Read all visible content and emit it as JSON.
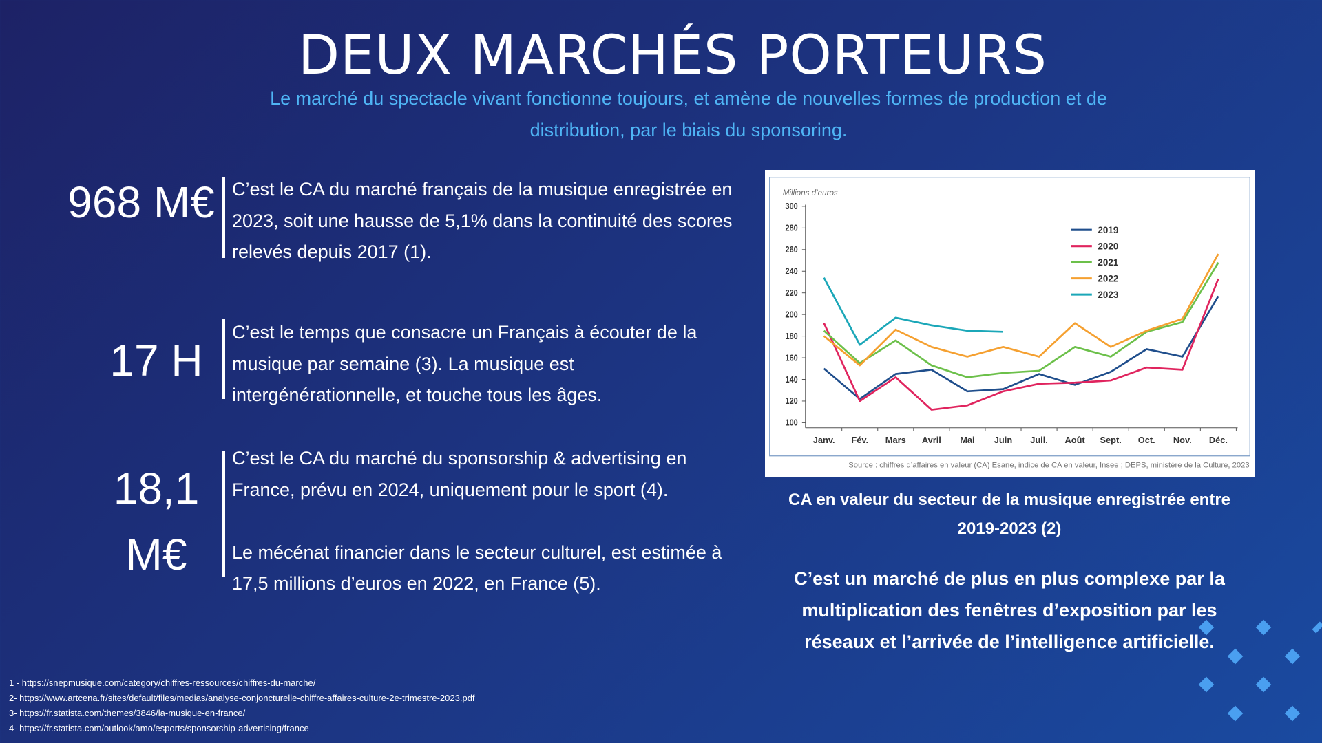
{
  "title": "DEUX MARCHÉS PORTEURS",
  "subtitle": "Le marché du spectacle vivant fonctionne toujours, et amène de nouvelles formes de production et de distribution, par le biais du sponsoring.",
  "stats": [
    {
      "figure": "968 M€",
      "text": [
        "C’est le CA du marché français de la musique enregistrée en 2023, soit une hausse de 5,1% dans la continuité des scores relevés depuis 2017 (1)."
      ]
    },
    {
      "figure": "17 H",
      "text": [
        "C’est le temps que consacre un Français à écouter de la musique par semaine (3). La musique est intergénérationnelle, et touche tous les âges."
      ]
    },
    {
      "figure": "18,1 M€",
      "text": [
        "C’est le CA du marché du sponsorship & advertising en France, prévu en 2024, uniquement pour le sport (4).",
        "Le mécénat financier dans le secteur culturel, est estimée à 17,5 millions d’euros en 2022, en France (5)."
      ]
    }
  ],
  "chart_data": {
    "type": "line",
    "y_label": "Millions d’euros",
    "source": "Source : chiffres d’affaires en valeur (CA) Esane, indice de CA en valeur, Insee ; DEPS, ministère de la Culture, 2023",
    "categories": [
      "Janv.",
      "Fév.",
      "Mars",
      "Avril",
      "Mai",
      "Juin",
      "Juil.",
      "Août",
      "Sept.",
      "Oct.",
      "Nov.",
      "Déc."
    ],
    "series": [
      {
        "name": "2019",
        "color": "#1f4e8c",
        "values": [
          150,
          122,
          145,
          149,
          129,
          131,
          145,
          135,
          147,
          168,
          161,
          217
        ]
      },
      {
        "name": "2020",
        "color": "#e0245e",
        "values": [
          192,
          120,
          142,
          112,
          116,
          129,
          136,
          137,
          139,
          151,
          149,
          233
        ]
      },
      {
        "name": "2021",
        "color": "#6cc04a",
        "values": [
          185,
          155,
          176,
          153,
          142,
          146,
          148,
          170,
          161,
          184,
          193,
          248
        ]
      },
      {
        "name": "2022",
        "color": "#f5a030",
        "values": [
          180,
          153,
          186,
          170,
          161,
          170,
          161,
          192,
          170,
          185,
          196,
          256
        ]
      },
      {
        "name": "2023",
        "color": "#1ba7b8",
        "values": [
          234,
          172,
          197,
          190,
          185,
          184,
          null,
          null,
          null,
          null,
          null,
          null
        ]
      }
    ],
    "ylim": [
      100,
      300
    ],
    "yticks": [
      100,
      120,
      140,
      160,
      180,
      200,
      220,
      240,
      260,
      280,
      300
    ],
    "legend": "upper right"
  },
  "chart_caption": "CA en valeur du secteur de la musique enregistrée entre 2019-2023 (2)",
  "conclusion": "C’est un marché de plus en plus complexe par la multiplication des fenêtres d’exposition par les réseaux et l’arrivée de l’intelligence artificielle.",
  "footnotes": [
    "1 - https://snepmusique.com/category/chiffres-ressources/chiffres-du-marche/",
    "2- https://www.artcena.fr/sites/default/files/medias/analyse-conjoncturelle-chiffre-affaires-culture-2e-trimestre-2023.pdf",
    "3- https://fr.statista.com/themes/3846/la-musique-en-france/",
    "4- https://fr.statista.com/outlook/amo/esports/sponsorship-advertising/france"
  ]
}
